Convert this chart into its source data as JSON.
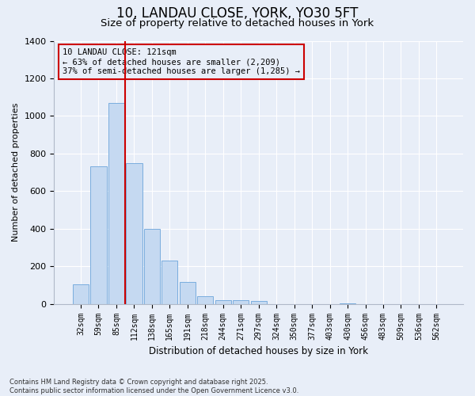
{
  "title": "10, LANDAU CLOSE, YORK, YO30 5FT",
  "subtitle": "Size of property relative to detached houses in York",
  "xlabel": "Distribution of detached houses by size in York",
  "ylabel": "Number of detached properties",
  "categories": [
    "32sqm",
    "59sqm",
    "85sqm",
    "112sqm",
    "138sqm",
    "165sqm",
    "191sqm",
    "218sqm",
    "244sqm",
    "271sqm",
    "297sqm",
    "324sqm",
    "350sqm",
    "377sqm",
    "403sqm",
    "430sqm",
    "456sqm",
    "483sqm",
    "509sqm",
    "536sqm",
    "562sqm"
  ],
  "bar_heights": [
    105,
    730,
    1070,
    750,
    400,
    230,
    115,
    40,
    20,
    20,
    15,
    0,
    0,
    0,
    0,
    5,
    0,
    0,
    0,
    0,
    0
  ],
  "bar_color": "#c5d9f1",
  "bar_edgecolor": "#7aadde",
  "vline_x": 2.5,
  "vline_color": "#cc0000",
  "annotation_text": "10 LANDAU CLOSE: 121sqm\n← 63% of detached houses are smaller (2,209)\n37% of semi-detached houses are larger (1,285) →",
  "footnote": "Contains HM Land Registry data © Crown copyright and database right 2025.\nContains public sector information licensed under the Open Government Licence v3.0.",
  "background_color": "#e8eef8",
  "ylim": [
    0,
    1400
  ],
  "yticks": [
    0,
    200,
    400,
    600,
    800,
    1000,
    1200,
    1400
  ]
}
